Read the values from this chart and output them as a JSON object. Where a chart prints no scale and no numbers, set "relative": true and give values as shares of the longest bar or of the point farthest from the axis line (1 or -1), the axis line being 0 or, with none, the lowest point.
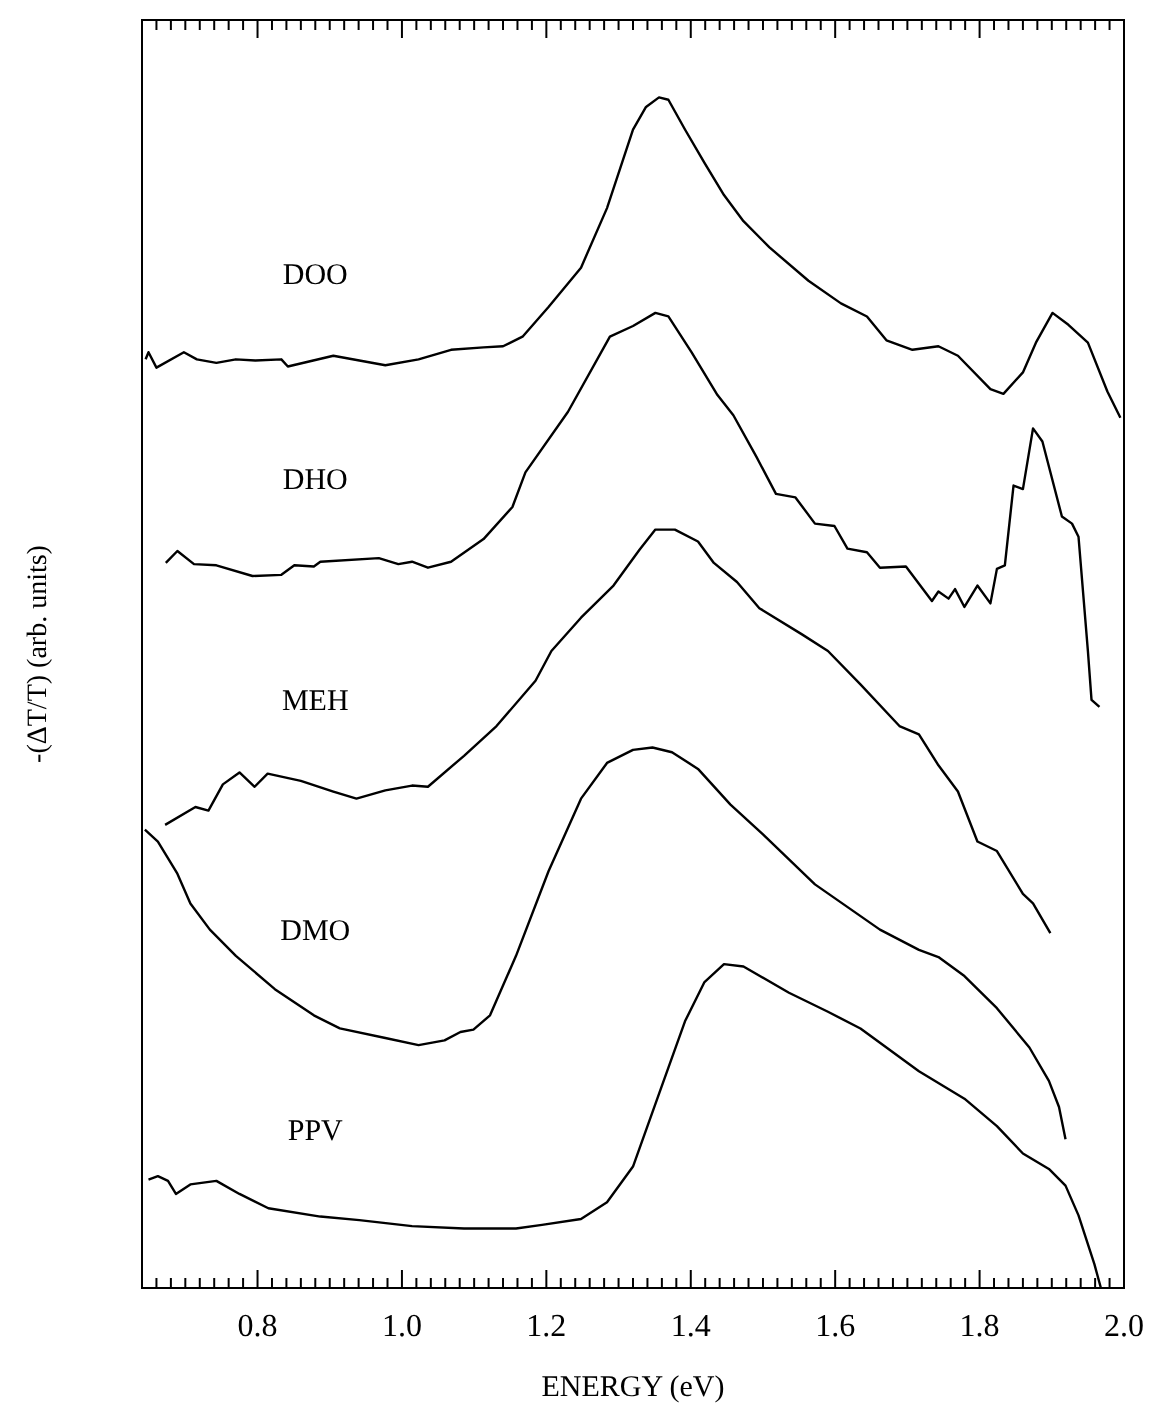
{
  "chart_data": {
    "type": "line",
    "relative": true,
    "xlabel": "ENERGY (eV)",
    "ylabel": "-(ΔT/T) (arb. units)",
    "xlim": [
      0.64,
      2.0
    ],
    "xticks": [
      {
        "value": 0.66,
        "label": null
      },
      {
        "value": 0.68,
        "label": null
      },
      {
        "value": 0.7,
        "label": null
      },
      {
        "value": 0.72,
        "label": null
      },
      {
        "value": 0.74,
        "label": null
      },
      {
        "value": 0.76,
        "label": null
      },
      {
        "value": 0.78,
        "label": null
      },
      {
        "value": 0.8,
        "label": "0.8"
      },
      {
        "value": 0.82,
        "label": null
      },
      {
        "value": 0.84,
        "label": null
      },
      {
        "value": 0.86,
        "label": null
      },
      {
        "value": 0.88,
        "label": null
      },
      {
        "value": 0.9,
        "label": null
      },
      {
        "value": 0.92,
        "label": null
      },
      {
        "value": 0.94,
        "label": null
      },
      {
        "value": 0.96,
        "label": null
      },
      {
        "value": 0.98,
        "label": null
      },
      {
        "value": 1.0,
        "label": "1.0"
      },
      {
        "value": 1.02,
        "label": null
      },
      {
        "value": 1.04,
        "label": null
      },
      {
        "value": 1.06,
        "label": null
      },
      {
        "value": 1.08,
        "label": null
      },
      {
        "value": 1.1,
        "label": null
      },
      {
        "value": 1.12,
        "label": null
      },
      {
        "value": 1.14,
        "label": null
      },
      {
        "value": 1.16,
        "label": null
      },
      {
        "value": 1.18,
        "label": null
      },
      {
        "value": 1.2,
        "label": "1.2"
      },
      {
        "value": 1.22,
        "label": null
      },
      {
        "value": 1.24,
        "label": null
      },
      {
        "value": 1.26,
        "label": null
      },
      {
        "value": 1.28,
        "label": null
      },
      {
        "value": 1.3,
        "label": null
      },
      {
        "value": 1.32,
        "label": null
      },
      {
        "value": 1.34,
        "label": null
      },
      {
        "value": 1.36,
        "label": null
      },
      {
        "value": 1.38,
        "label": null
      },
      {
        "value": 1.4,
        "label": "1.4"
      },
      {
        "value": 1.42,
        "label": null
      },
      {
        "value": 1.44,
        "label": null
      },
      {
        "value": 1.46,
        "label": null
      },
      {
        "value": 1.48,
        "label": null
      },
      {
        "value": 1.5,
        "label": null
      },
      {
        "value": 1.52,
        "label": null
      },
      {
        "value": 1.54,
        "label": null
      },
      {
        "value": 1.56,
        "label": null
      },
      {
        "value": 1.58,
        "label": null
      },
      {
        "value": 1.6,
        "label": "1.6"
      },
      {
        "value": 1.62,
        "label": null
      },
      {
        "value": 1.64,
        "label": null
      },
      {
        "value": 1.66,
        "label": null
      },
      {
        "value": 1.68,
        "label": null
      },
      {
        "value": 1.7,
        "label": null
      },
      {
        "value": 1.72,
        "label": null
      },
      {
        "value": 1.74,
        "label": null
      },
      {
        "value": 1.76,
        "label": null
      },
      {
        "value": 1.78,
        "label": null
      },
      {
        "value": 1.8,
        "label": "1.8"
      },
      {
        "value": 1.82,
        "label": null
      },
      {
        "value": 1.84,
        "label": null
      },
      {
        "value": 1.86,
        "label": null
      },
      {
        "value": 1.88,
        "label": null
      },
      {
        "value": 1.9,
        "label": null
      },
      {
        "value": 1.92,
        "label": null
      },
      {
        "value": 1.94,
        "label": null
      },
      {
        "value": 1.96,
        "label": null
      },
      {
        "value": 1.98,
        "label": null
      },
      {
        "value": 2.0,
        "label": "2.0"
      }
    ],
    "series": [
      {
        "name": "DOO",
        "color": "#000000",
        "x": [
          0.645,
          0.649,
          0.66,
          0.698,
          0.716,
          0.743,
          0.77,
          0.797,
          0.833,
          0.842,
          0.905,
          0.977,
          1.023,
          1.068,
          1.113,
          1.14,
          1.167,
          1.203,
          1.248,
          1.284,
          1.32,
          1.338,
          1.356,
          1.369,
          1.392,
          1.419,
          1.446,
          1.473,
          1.509,
          1.563,
          1.608,
          1.644,
          1.671,
          1.707,
          1.743,
          1.77,
          1.815,
          1.833,
          1.86,
          1.878,
          1.901,
          1.923,
          1.95,
          1.977,
          1.995
        ],
        "values": [
          0.78,
          0.786,
          0.773,
          0.786,
          0.78,
          0.777,
          0.78,
          0.779,
          0.78,
          0.774,
          0.783,
          0.775,
          0.78,
          0.788,
          0.79,
          0.791,
          0.799,
          0.824,
          0.857,
          0.907,
          0.973,
          0.992,
          1.0,
          0.998,
          0.973,
          0.945,
          0.918,
          0.896,
          0.874,
          0.846,
          0.827,
          0.816,
          0.796,
          0.788,
          0.791,
          0.783,
          0.755,
          0.751,
          0.769,
          0.794,
          0.819,
          0.809,
          0.794,
          0.753,
          0.731
        ]
      },
      {
        "name": "DHO",
        "color": "#000000",
        "x": [
          0.673,
          0.689,
          0.712,
          0.743,
          0.793,
          0.833,
          0.851,
          0.878,
          0.887,
          0.968,
          0.995,
          1.014,
          1.036,
          1.068,
          1.113,
          1.153,
          1.171,
          1.23,
          1.288,
          1.32,
          1.351,
          1.369,
          1.401,
          1.437,
          1.459,
          1.491,
          1.518,
          1.545,
          1.572,
          1.599,
          1.617,
          1.644,
          1.662,
          1.698,
          1.734,
          1.743,
          1.757,
          1.766,
          1.779,
          1.797,
          1.815,
          1.824,
          1.835,
          1.847,
          1.86,
          1.874,
          1.887,
          1.914,
          1.928,
          1.937,
          1.95,
          1.955,
          1.966
        ],
        "values": [
          0.609,
          0.619,
          0.608,
          0.607,
          0.598,
          0.599,
          0.607,
          0.606,
          0.61,
          0.613,
          0.608,
          0.61,
          0.605,
          0.61,
          0.629,
          0.656,
          0.685,
          0.736,
          0.799,
          0.808,
          0.819,
          0.816,
          0.786,
          0.75,
          0.733,
          0.698,
          0.667,
          0.664,
          0.642,
          0.64,
          0.621,
          0.618,
          0.605,
          0.606,
          0.577,
          0.585,
          0.579,
          0.587,
          0.572,
          0.59,
          0.575,
          0.604,
          0.607,
          0.674,
          0.671,
          0.722,
          0.711,
          0.648,
          0.642,
          0.631,
          0.535,
          0.494,
          0.488
        ]
      },
      {
        "name": "MEH",
        "color": "#000000",
        "x": [
          0.672,
          0.714,
          0.732,
          0.752,
          0.775,
          0.796,
          0.814,
          0.86,
          0.905,
          0.937,
          0.977,
          1.014,
          1.036,
          1.086,
          1.131,
          1.185,
          1.207,
          1.248,
          1.293,
          1.329,
          1.351,
          1.378,
          1.41,
          1.432,
          1.464,
          1.495,
          1.554,
          1.59,
          1.635,
          1.689,
          1.716,
          1.743,
          1.77,
          1.797,
          1.824,
          1.86,
          1.874,
          1.898
        ],
        "values": [
          0.389,
          0.404,
          0.401,
          0.423,
          0.433,
          0.421,
          0.432,
          0.426,
          0.417,
          0.411,
          0.418,
          0.422,
          0.421,
          0.447,
          0.472,
          0.51,
          0.535,
          0.563,
          0.59,
          0.62,
          0.637,
          0.637,
          0.627,
          0.609,
          0.593,
          0.571,
          0.549,
          0.535,
          0.507,
          0.472,
          0.465,
          0.439,
          0.417,
          0.375,
          0.367,
          0.331,
          0.323,
          0.298
        ]
      },
      {
        "name": "DMO",
        "color": "#000000",
        "x": [
          0.644,
          0.662,
          0.689,
          0.707,
          0.734,
          0.77,
          0.824,
          0.878,
          0.914,
          0.977,
          1.023,
          1.059,
          1.081,
          1.099,
          1.122,
          1.158,
          1.203,
          1.248,
          1.284,
          1.32,
          1.347,
          1.374,
          1.41,
          1.455,
          1.5,
          1.572,
          1.662,
          1.716,
          1.743,
          1.779,
          1.824,
          1.869,
          1.896,
          1.91,
          1.919
        ],
        "values": [
          0.385,
          0.375,
          0.348,
          0.323,
          0.301,
          0.279,
          0.251,
          0.229,
          0.218,
          0.21,
          0.204,
          0.208,
          0.215,
          0.217,
          0.229,
          0.279,
          0.35,
          0.411,
          0.441,
          0.452,
          0.454,
          0.45,
          0.436,
          0.406,
          0.381,
          0.339,
          0.301,
          0.284,
          0.278,
          0.262,
          0.235,
          0.202,
          0.174,
          0.152,
          0.125
        ]
      },
      {
        "name": "PPV",
        "color": "#000000",
        "x": [
          0.649,
          0.662,
          0.676,
          0.687,
          0.707,
          0.743,
          0.775,
          0.815,
          0.887,
          0.941,
          1.014,
          1.086,
          1.158,
          1.194,
          1.248,
          1.284,
          1.32,
          1.356,
          1.392,
          1.419,
          1.446,
          1.473,
          1.536,
          1.59,
          1.635,
          1.716,
          1.779,
          1.824,
          1.86,
          1.896,
          1.919,
          1.937,
          1.959,
          1.968
        ],
        "values": [
          0.091,
          0.094,
          0.09,
          0.079,
          0.087,
          0.09,
          0.079,
          0.067,
          0.06,
          0.057,
          0.052,
          0.05,
          0.05,
          0.053,
          0.058,
          0.072,
          0.102,
          0.163,
          0.224,
          0.257,
          0.272,
          0.27,
          0.248,
          0.232,
          0.218,
          0.182,
          0.159,
          0.136,
          0.113,
          0.1,
          0.086,
          0.061,
          0.02,
          0
        ]
      }
    ]
  }
}
